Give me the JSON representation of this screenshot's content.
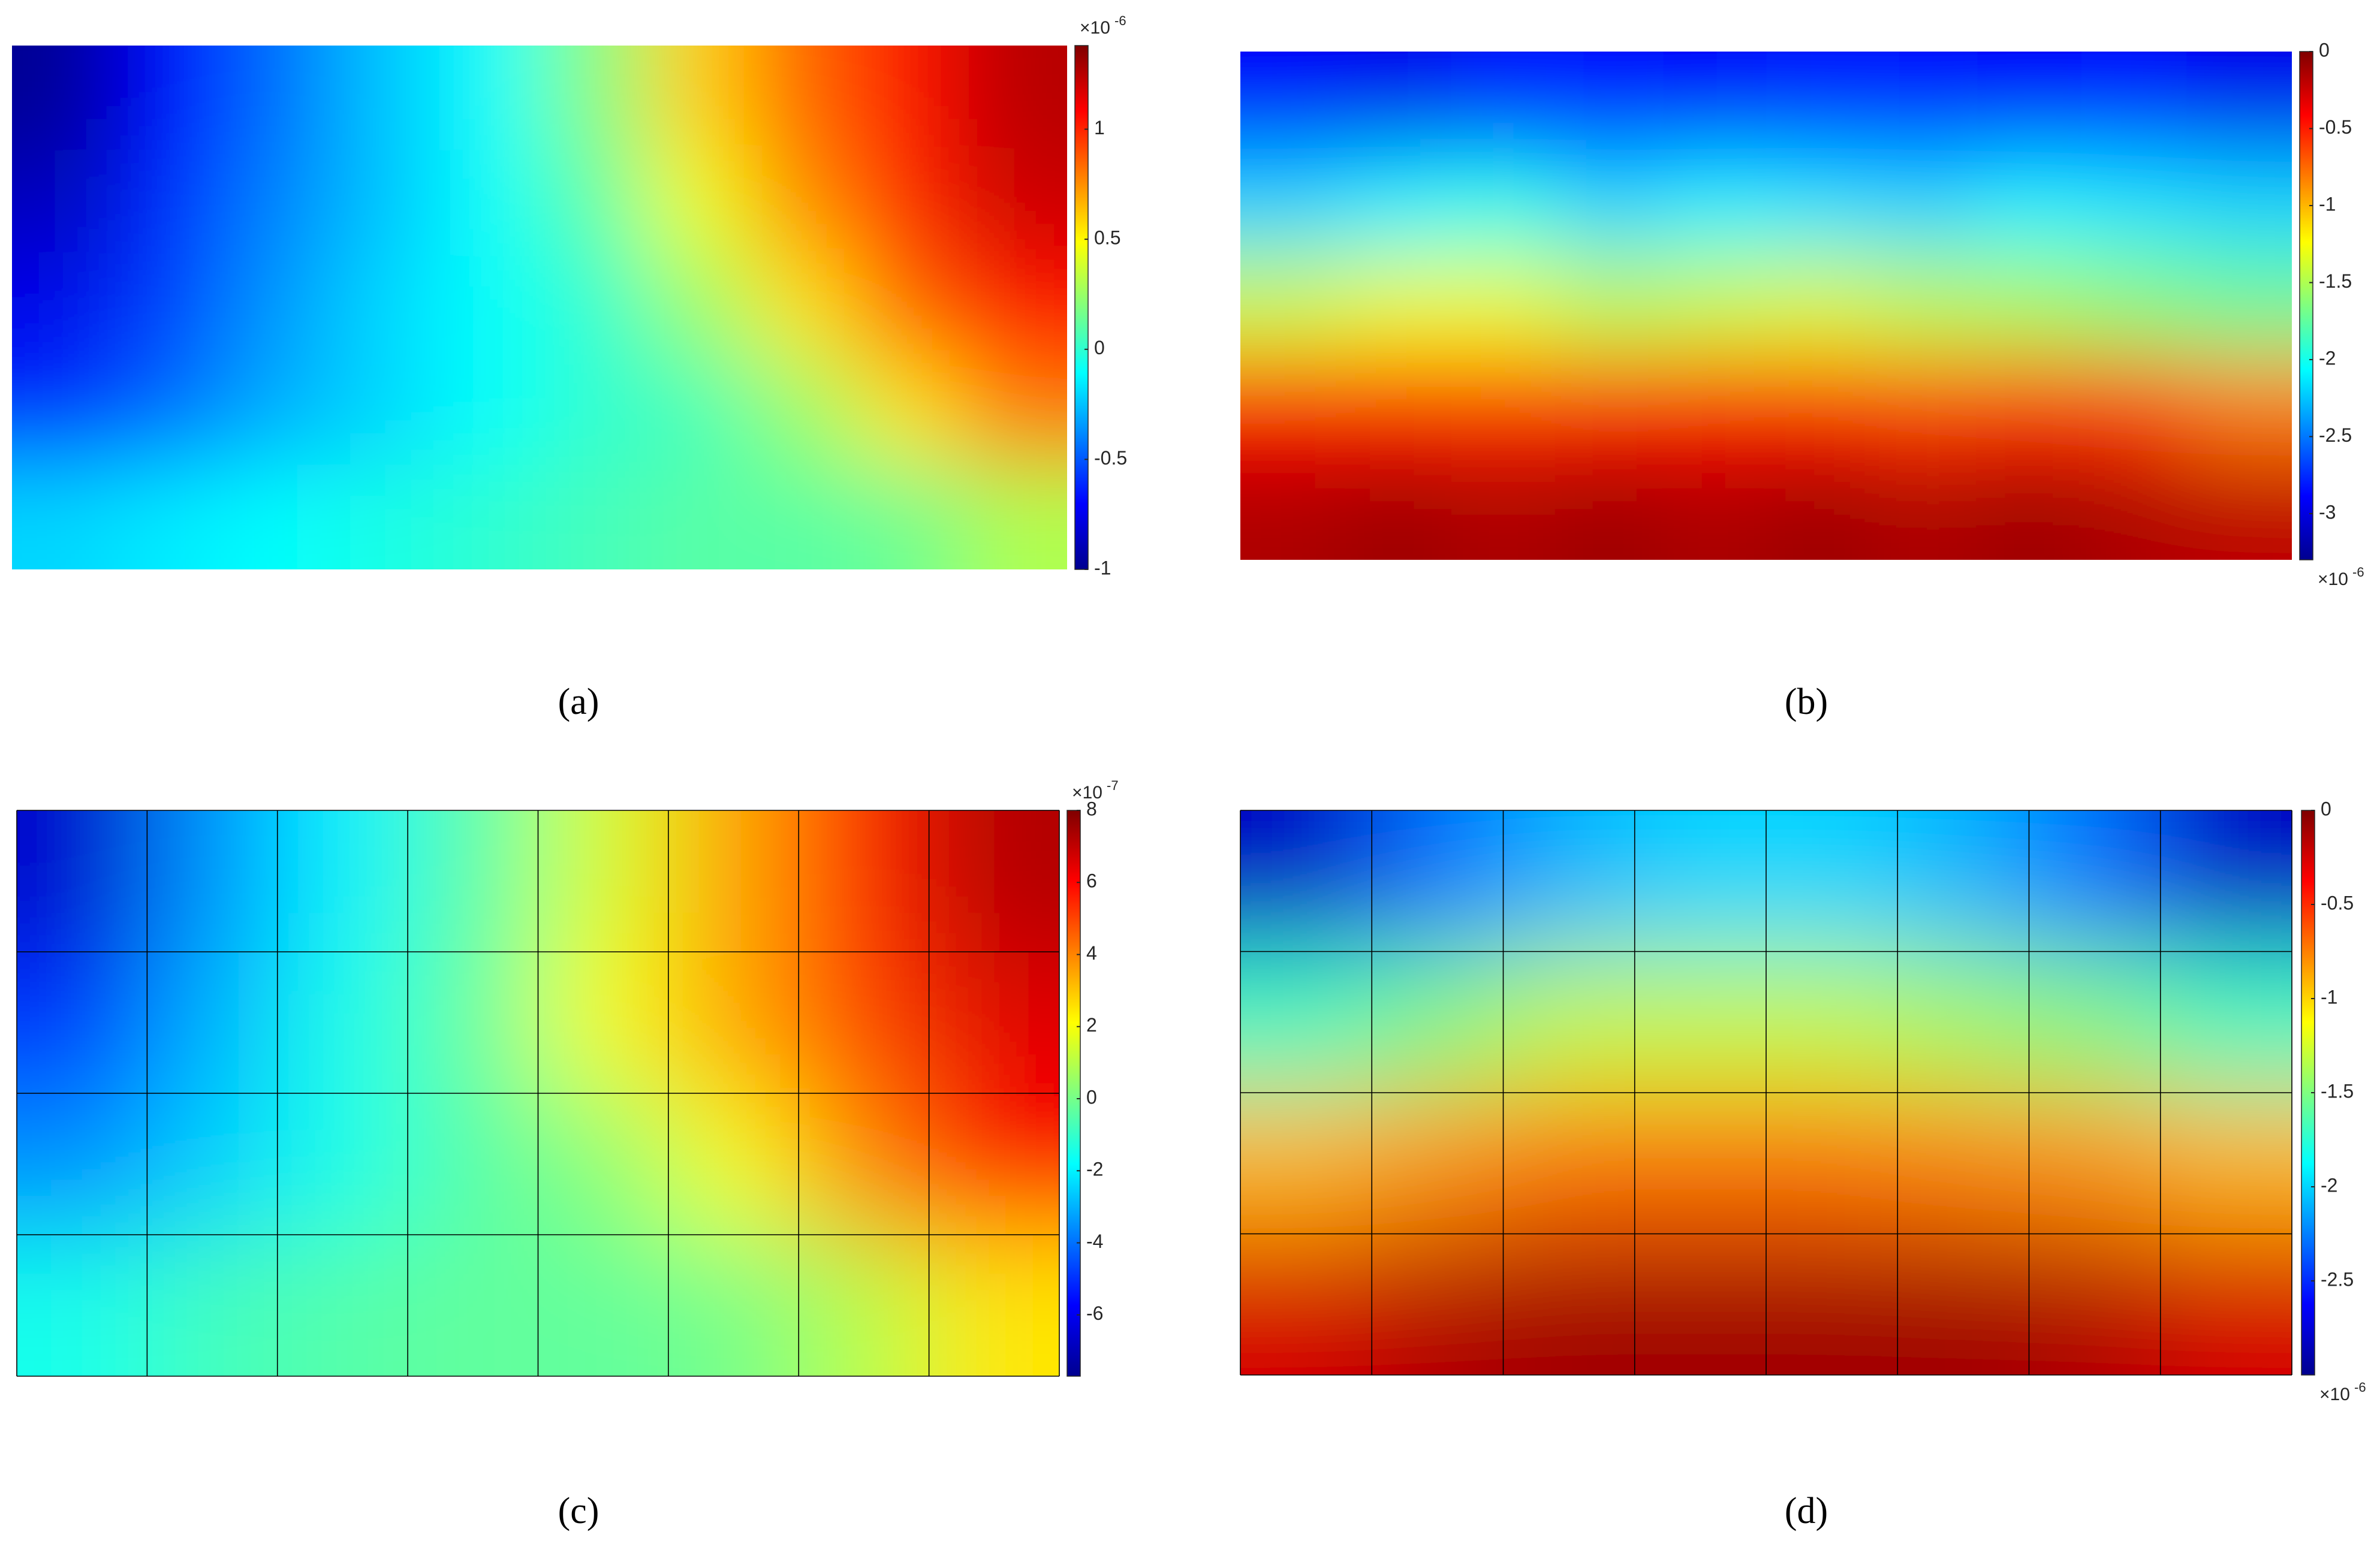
{
  "chart_data": [
    {
      "type": "heatmap",
      "caption": "(a)",
      "multiplier": "×10",
      "exponent": "-6",
      "multiplier_corner": "top",
      "mesh": false,
      "clim": [
        -1,
        1.38
      ],
      "cticks": [
        -1,
        -0.5,
        0,
        0.5,
        1
      ],
      "z": [
        [
          -0.95,
          -0.7,
          -0.45,
          -0.25,
          -0.1,
          0.2,
          0.6,
          0.85,
          1.05,
          1.25
        ],
        [
          -0.85,
          -0.6,
          -0.4,
          -0.25,
          -0.1,
          0.1,
          0.45,
          0.75,
          1.0,
          1.2
        ],
        [
          -0.75,
          -0.55,
          -0.35,
          -0.2,
          -0.1,
          0.0,
          0.25,
          0.55,
          0.85,
          1.05
        ],
        [
          -0.6,
          -0.45,
          -0.3,
          -0.2,
          -0.1,
          0.0,
          0.05,
          0.25,
          0.55,
          0.8
        ],
        [
          -0.2,
          -0.15,
          -0.1,
          -0.05,
          0.0,
          0.05,
          0.1,
          0.1,
          0.15,
          0.3
        ]
      ]
    },
    {
      "type": "heatmap",
      "caption": "(b)",
      "multiplier": "×10",
      "exponent": "-6",
      "multiplier_corner": "bottom",
      "mesh": false,
      "clim": [
        -3.3,
        0
      ],
      "cticks": [
        -3,
        -2.5,
        -2,
        -1.5,
        -1,
        -0.5,
        0
      ],
      "z": [
        [
          -2.9,
          -2.95,
          -2.8,
          -2.85,
          -2.9,
          -2.8,
          -2.85,
          -2.9,
          -2.85,
          -2.95
        ],
        [
          -2.2,
          -2.1,
          -2.0,
          -2.2,
          -2.1,
          -2.15,
          -2.2,
          -2.1,
          -2.15,
          -2.2
        ],
        [
          -1.4,
          -1.3,
          -1.3,
          -1.45,
          -1.4,
          -1.35,
          -1.45,
          -1.5,
          -1.6,
          -1.7
        ],
        [
          -0.45,
          -0.5,
          -0.55,
          -0.5,
          -0.45,
          -0.5,
          -0.6,
          -0.55,
          -0.6,
          -0.8
        ],
        [
          -0.15,
          -0.1,
          -0.15,
          -0.1,
          -0.15,
          -0.1,
          -0.15,
          -0.1,
          -0.15,
          -0.2
        ]
      ]
    },
    {
      "type": "heatmap",
      "caption": "(c)",
      "multiplier": "×10",
      "exponent": "-7",
      "multiplier_corner": "top",
      "mesh": true,
      "clim": [
        -7.7,
        8
      ],
      "cticks": [
        -6,
        -4,
        -2,
        0,
        2,
        4,
        6,
        8
      ],
      "z": [
        [
          -6.5,
          -3.5,
          -2,
          -0.5,
          1.5,
          3.5,
          5.5,
          7.2
        ],
        [
          -5,
          -3,
          -1.5,
          -0.3,
          2,
          3.5,
          5,
          6.5
        ],
        [
          -3.5,
          -2.5,
          -1.5,
          -0.5,
          0.3,
          2,
          4,
          6
        ],
        [
          -1.5,
          -0.8,
          -0.5,
          -0.3,
          -0.3,
          0,
          1,
          2.5
        ]
      ]
    },
    {
      "type": "heatmap",
      "caption": "(d)",
      "multiplier": "×10",
      "exponent": "-6",
      "multiplier_corner": "bottom",
      "mesh": true,
      "clim": [
        -3,
        0
      ],
      "cticks": [
        -2.5,
        -2,
        -1.5,
        -1,
        -0.5,
        0
      ],
      "z": [
        [
          -2.8,
          -2.3,
          -2.1,
          -2.0,
          -2.0,
          -2.1,
          -2.3,
          -2.8
        ],
        [
          -1.7,
          -1.5,
          -1.3,
          -1.3,
          -1.3,
          -1.4,
          -1.5,
          -1.7
        ],
        [
          -0.9,
          -0.8,
          -0.7,
          -0.7,
          -0.7,
          -0.75,
          -0.8,
          -0.9
        ],
        [
          -0.25,
          -0.15,
          -0.1,
          -0.1,
          -0.1,
          -0.1,
          -0.15,
          -0.25
        ]
      ]
    }
  ]
}
